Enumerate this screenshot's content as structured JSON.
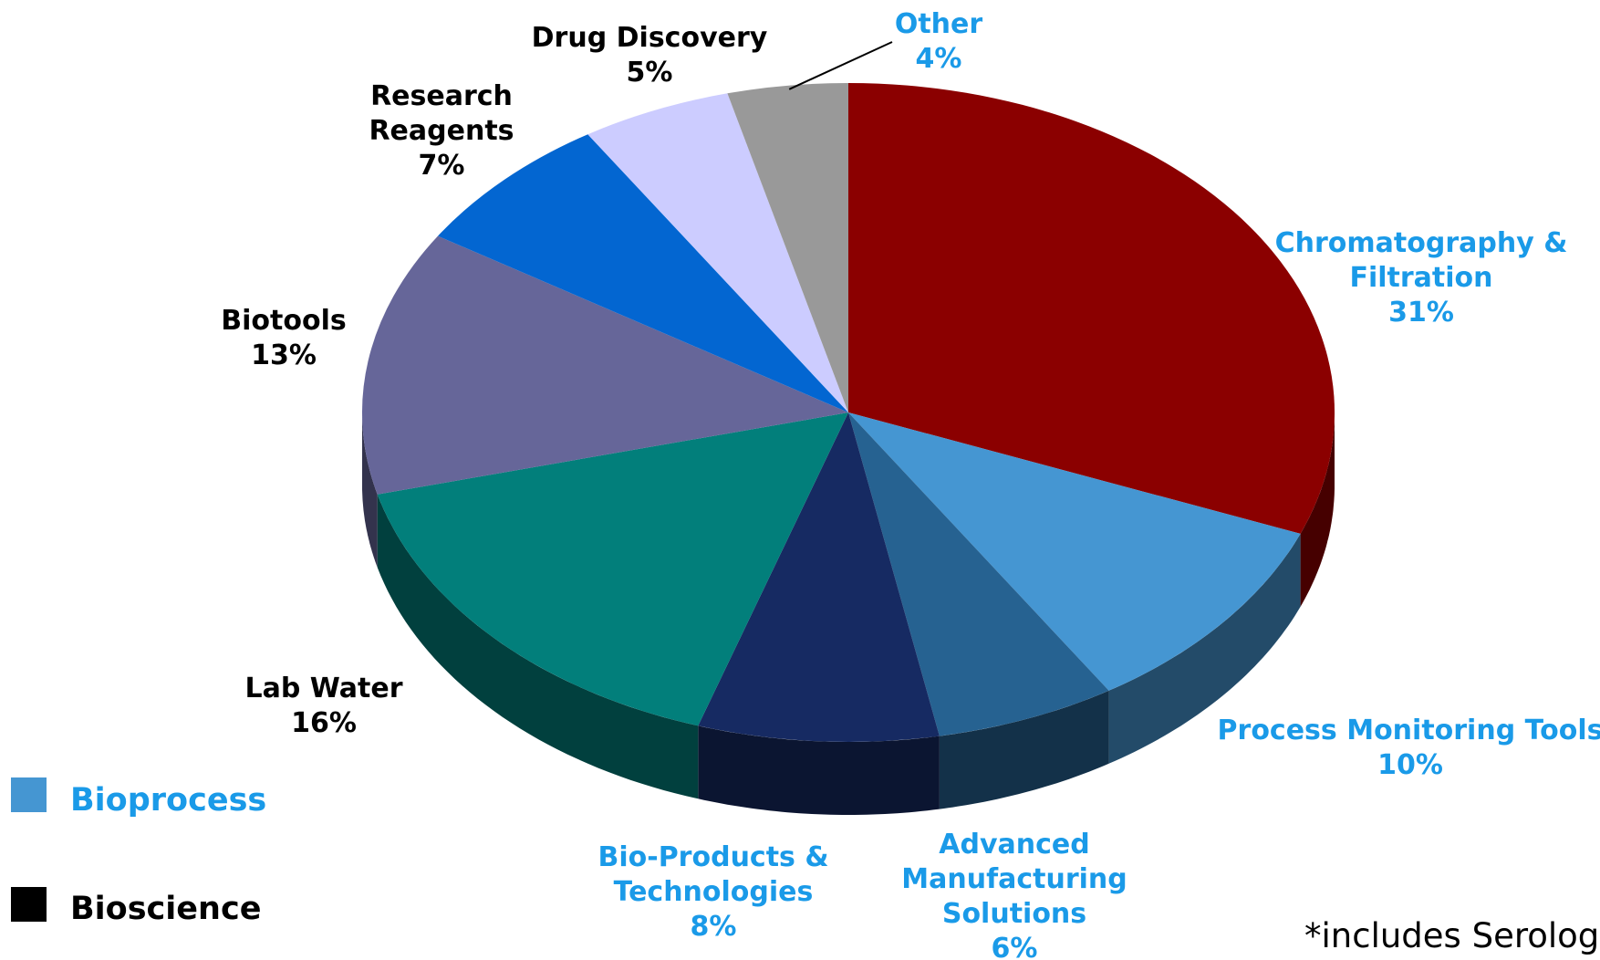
{
  "chart_data": {
    "type": "pie",
    "title": "",
    "segments": [
      {
        "label_lines": [
          "Chromatography &",
          "Filtration"
        ],
        "value": 31,
        "pct_label": "31%",
        "group": "Bioprocess",
        "color": "#8b0000"
      },
      {
        "label_lines": [
          "Process Monitoring Tools"
        ],
        "value": 10,
        "pct_label": "10%",
        "group": "Bioprocess",
        "color": "#4596d2"
      },
      {
        "label_lines": [
          "Advanced",
          "Manufacturing",
          "Solutions"
        ],
        "value": 6,
        "pct_label": "6%",
        "group": "Bioprocess",
        "color": "#266291"
      },
      {
        "label_lines": [
          "Bio-Products &",
          "Technologies"
        ],
        "value": 8,
        "pct_label": "8%",
        "group": "Bioprocess",
        "color": "#162a62"
      },
      {
        "label_lines": [
          "Lab Water"
        ],
        "value": 16,
        "pct_label": "16%",
        "group": "Bioscience",
        "color": "#027f7b"
      },
      {
        "label_lines": [
          "Biotools"
        ],
        "value": 13,
        "pct_label": "13%",
        "group": "Bioscience",
        "color": "#666699"
      },
      {
        "label_lines": [
          "Research",
          "Reagents"
        ],
        "value": 7,
        "pct_label": "7%",
        "group": "Bioscience",
        "color": "#0366d1"
      },
      {
        "label_lines": [
          "Drug Discovery"
        ],
        "value": 5,
        "pct_label": "5%",
        "group": "Bioscience",
        "color": "#ccccff"
      },
      {
        "label_lines": [
          "Other"
        ],
        "value": 4,
        "pct_label": "4%",
        "group": "Bioprocess",
        "color": "#999999"
      }
    ],
    "legend": [
      {
        "name": "Bioprocess",
        "swatch_color": "#4596d2",
        "text_color": "#1a9ae8"
      },
      {
        "name": "Bioscience",
        "swatch_color": "#000000",
        "text_color": "#000000"
      }
    ],
    "legend_placement": "bottom-left",
    "group_label_colors": {
      "Bioprocess": "#1a9ae8",
      "Bioscience": "#000000"
    },
    "footnote": "*includes Serolog"
  }
}
